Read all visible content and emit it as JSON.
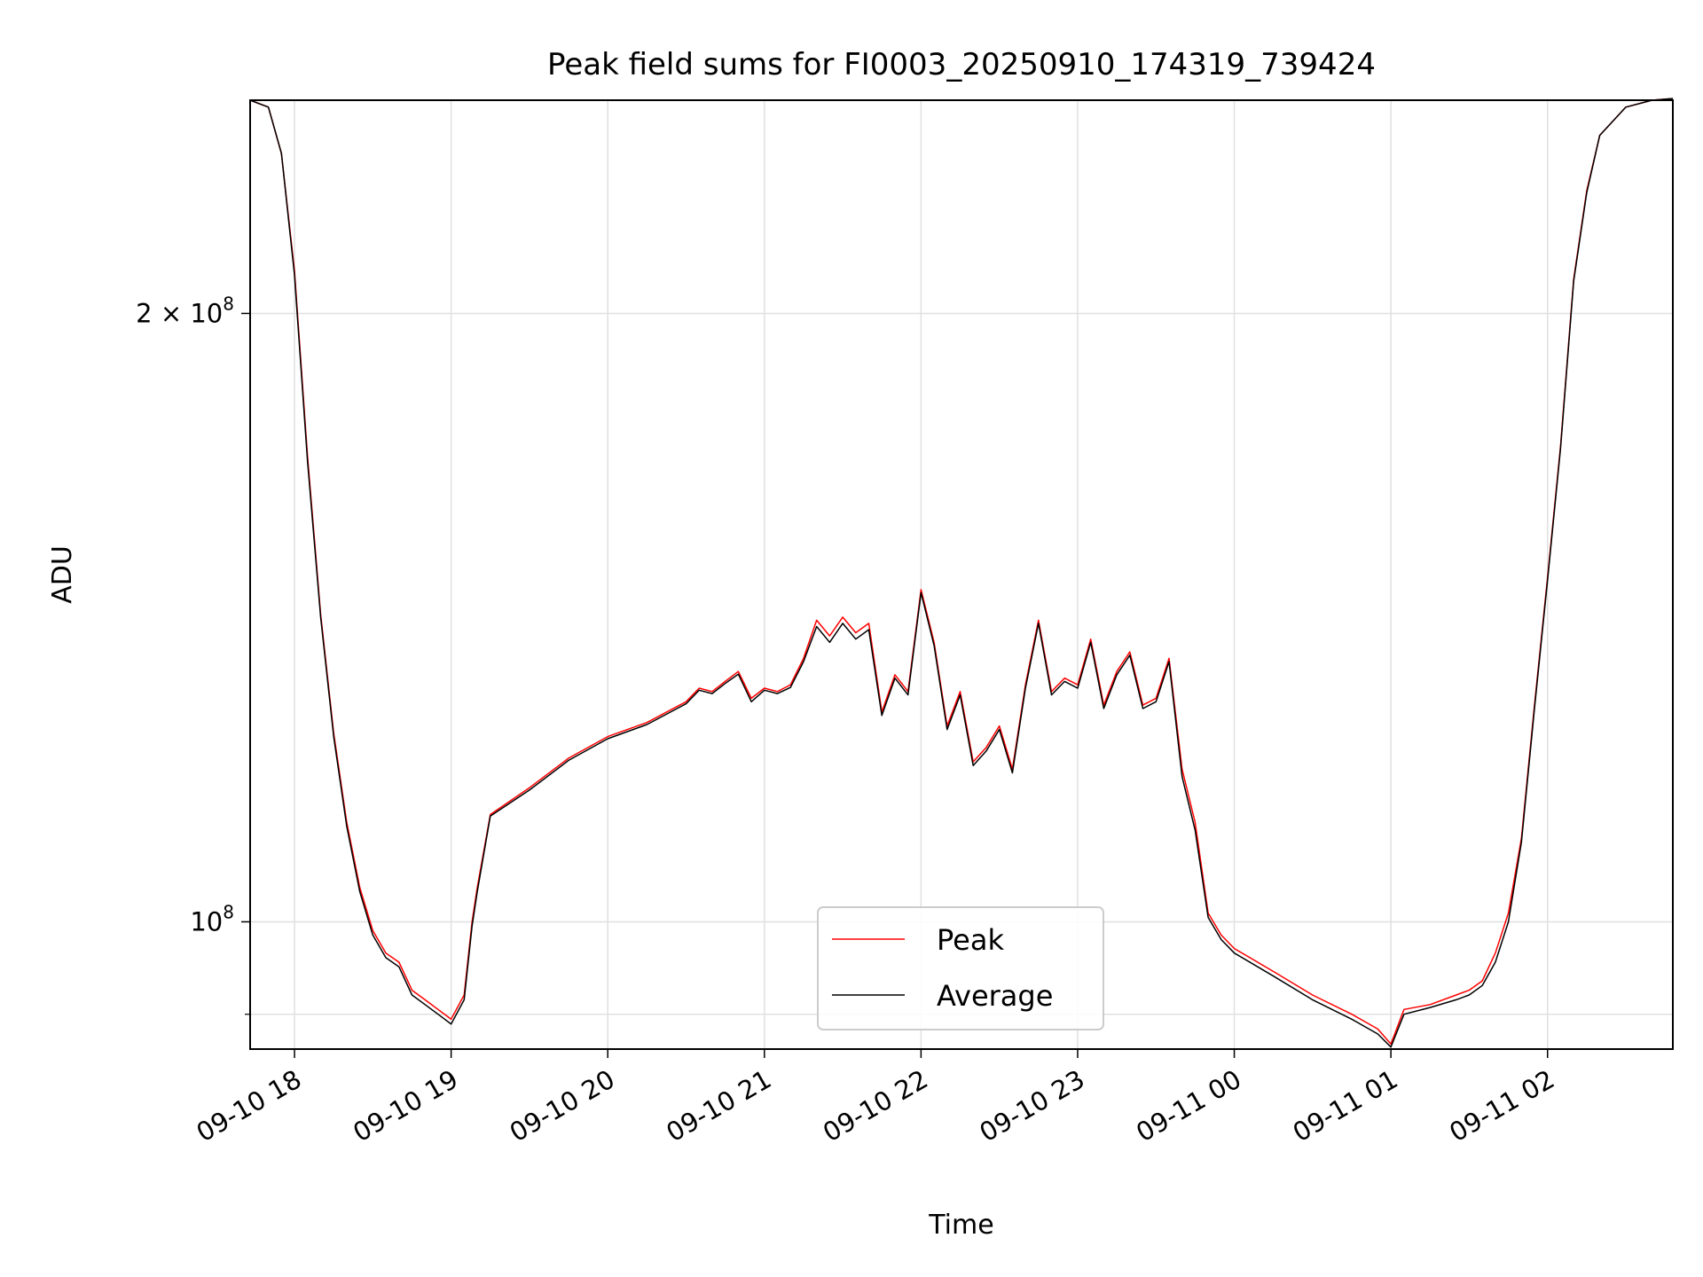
{
  "chart_data": {
    "type": "line",
    "title": "Peak field sums for FI0003_20250910_174319_739424",
    "xlabel": "Time",
    "ylabel": "ADU",
    "yscale": "log",
    "grid": true,
    "legend_position": "bottom-center",
    "x_range": [
      "2025-09-10 17:43",
      "2025-09-11 02:48"
    ],
    "ylim": [
      86500000,
      255000000
    ],
    "x_ticks": [
      "09-10 18",
      "09-10 19",
      "09-10 20",
      "09-10 21",
      "09-10 22",
      "09-10 23",
      "09-11 00",
      "09-11 01",
      "09-11 02"
    ],
    "y_ticks": [
      {
        "value": 200000000,
        "mantissa": "2",
        "exponent": "8"
      },
      {
        "value": 100000000,
        "mantissa": "",
        "exponent": "8"
      }
    ],
    "series": [
      {
        "name": "Peak",
        "color": "#ff0000",
        "x": [
          "2025-09-10 17:43",
          "2025-09-10 17:50",
          "2025-09-10 17:55",
          "2025-09-10 18:00",
          "2025-09-10 18:05",
          "2025-09-10 18:10",
          "2025-09-10 18:15",
          "2025-09-10 18:20",
          "2025-09-10 18:25",
          "2025-09-10 18:30",
          "2025-09-10 18:35",
          "2025-09-10 18:40",
          "2025-09-10 18:45",
          "2025-09-10 18:50",
          "2025-09-10 18:55",
          "2025-09-10 19:00",
          "2025-09-10 19:05",
          "2025-09-10 19:08",
          "2025-09-10 19:10",
          "2025-09-10 19:15",
          "2025-09-10 19:30",
          "2025-09-10 19:45",
          "2025-09-10 20:00",
          "2025-09-10 20:15",
          "2025-09-10 20:30",
          "2025-09-10 20:35",
          "2025-09-10 20:40",
          "2025-09-10 20:45",
          "2025-09-10 20:50",
          "2025-09-10 20:55",
          "2025-09-10 21:00",
          "2025-09-10 21:05",
          "2025-09-10 21:10",
          "2025-09-10 21:15",
          "2025-09-10 21:20",
          "2025-09-10 21:25",
          "2025-09-10 21:30",
          "2025-09-10 21:35",
          "2025-09-10 21:40",
          "2025-09-10 21:45",
          "2025-09-10 21:50",
          "2025-09-10 21:55",
          "2025-09-10 22:00",
          "2025-09-10 22:05",
          "2025-09-10 22:10",
          "2025-09-10 22:15",
          "2025-09-10 22:20",
          "2025-09-10 22:25",
          "2025-09-10 22:30",
          "2025-09-10 22:35",
          "2025-09-10 22:40",
          "2025-09-10 22:45",
          "2025-09-10 22:50",
          "2025-09-10 22:55",
          "2025-09-10 23:00",
          "2025-09-10 23:05",
          "2025-09-10 23:10",
          "2025-09-10 23:15",
          "2025-09-10 23:20",
          "2025-09-10 23:25",
          "2025-09-10 23:30",
          "2025-09-10 23:35",
          "2025-09-10 23:40",
          "2025-09-10 23:45",
          "2025-09-10 23:50",
          "2025-09-10 23:55",
          "2025-09-11 00:00",
          "2025-09-11 00:15",
          "2025-09-11 00:30",
          "2025-09-11 00:45",
          "2025-09-11 00:55",
          "2025-09-11 01:00",
          "2025-09-11 01:05",
          "2025-09-11 01:15",
          "2025-09-11 01:25",
          "2025-09-11 01:30",
          "2025-09-11 01:35",
          "2025-09-11 01:40",
          "2025-09-11 01:45",
          "2025-09-11 01:50",
          "2025-09-11 01:55",
          "2025-09-11 02:00",
          "2025-09-11 02:05",
          "2025-09-11 02:10",
          "2025-09-11 02:15",
          "2025-09-11 02:20",
          "2025-09-11 02:30",
          "2025-09-11 02:40",
          "2025-09-11 02:48"
        ],
        "values": [
          255000000,
          253000000,
          240000000,
          210000000,
          170000000,
          142000000,
          124000000,
          112000000,
          104000000,
          99000000,
          96500000,
          95500000,
          92500000,
          91500000,
          90500000,
          89500000,
          92000000,
          100000000,
          104000000,
          113000000,
          116500000,
          120500000,
          123500000,
          125500000,
          128500000,
          130500000,
          130000000,
          131500000,
          133000000,
          129000000,
          130500000,
          130000000,
          131000000,
          135000000,
          141000000,
          138500000,
          141500000,
          139000000,
          140500000,
          127000000,
          132500000,
          130000000,
          146000000,
          137500000,
          125000000,
          130000000,
          120000000,
          122000000,
          125000000,
          119000000,
          131000000,
          141000000,
          130000000,
          132000000,
          131000000,
          138000000,
          128000000,
          133000000,
          136000000,
          128000000,
          129000000,
          135000000,
          119000000,
          112000000,
          101000000,
          98500000,
          97000000,
          94500000,
          92000000,
          90000000,
          88500000,
          87000000,
          90500000,
          91000000,
          92000000,
          92500000,
          93500000,
          96500000,
          101000000,
          110000000,
          128000000,
          148000000,
          172000000,
          208000000,
          230000000,
          245000000,
          253000000,
          255000000,
          255500000
        ]
      },
      {
        "name": "Average",
        "color": "#000000",
        "x": [
          "2025-09-10 17:43",
          "2025-09-10 17:50",
          "2025-09-10 17:55",
          "2025-09-10 18:00",
          "2025-09-10 18:05",
          "2025-09-10 18:10",
          "2025-09-10 18:15",
          "2025-09-10 18:20",
          "2025-09-10 18:25",
          "2025-09-10 18:30",
          "2025-09-10 18:35",
          "2025-09-10 18:40",
          "2025-09-10 18:45",
          "2025-09-10 18:50",
          "2025-09-10 18:55",
          "2025-09-10 19:00",
          "2025-09-10 19:05",
          "2025-09-10 19:08",
          "2025-09-10 19:10",
          "2025-09-10 19:15",
          "2025-09-10 19:30",
          "2025-09-10 19:45",
          "2025-09-10 20:00",
          "2025-09-10 20:15",
          "2025-09-10 20:30",
          "2025-09-10 20:35",
          "2025-09-10 20:40",
          "2025-09-10 20:45",
          "2025-09-10 20:50",
          "2025-09-10 20:55",
          "2025-09-10 21:00",
          "2025-09-10 21:05",
          "2025-09-10 21:10",
          "2025-09-10 21:15",
          "2025-09-10 21:20",
          "2025-09-10 21:25",
          "2025-09-10 21:30",
          "2025-09-10 21:35",
          "2025-09-10 21:40",
          "2025-09-10 21:45",
          "2025-09-10 21:50",
          "2025-09-10 21:55",
          "2025-09-10 22:00",
          "2025-09-10 22:05",
          "2025-09-10 22:10",
          "2025-09-10 22:15",
          "2025-09-10 22:20",
          "2025-09-10 22:25",
          "2025-09-10 22:30",
          "2025-09-10 22:35",
          "2025-09-10 22:40",
          "2025-09-10 22:45",
          "2025-09-10 22:50",
          "2025-09-10 22:55",
          "2025-09-10 23:00",
          "2025-09-10 23:05",
          "2025-09-10 23:10",
          "2025-09-10 23:15",
          "2025-09-10 23:20",
          "2025-09-10 23:25",
          "2025-09-10 23:30",
          "2025-09-10 23:35",
          "2025-09-10 23:40",
          "2025-09-10 23:45",
          "2025-09-10 23:50",
          "2025-09-10 23:55",
          "2025-09-11 00:00",
          "2025-09-11 00:15",
          "2025-09-11 00:30",
          "2025-09-11 00:45",
          "2025-09-11 00:55",
          "2025-09-11 01:00",
          "2025-09-11 01:05",
          "2025-09-11 01:15",
          "2025-09-11 01:25",
          "2025-09-11 01:30",
          "2025-09-11 01:35",
          "2025-09-11 01:40",
          "2025-09-11 01:45",
          "2025-09-11 01:50",
          "2025-09-11 01:55",
          "2025-09-11 02:00",
          "2025-09-11 02:05",
          "2025-09-11 02:10",
          "2025-09-11 02:15",
          "2025-09-11 02:20",
          "2025-09-11 02:30",
          "2025-09-11 02:40",
          "2025-09-11 02:48"
        ],
        "values": [
          255000000,
          253000000,
          240000000,
          209000000,
          169000000,
          141500000,
          123500000,
          111500000,
          103500000,
          98500000,
          96000000,
          95000000,
          92000000,
          91000000,
          90000000,
          89000000,
          91500000,
          99500000,
          103500000,
          112800000,
          116200000,
          120200000,
          123200000,
          125200000,
          128200000,
          130200000,
          129700000,
          131200000,
          132600000,
          128500000,
          130200000,
          129700000,
          130600000,
          134500000,
          140000000,
          137500000,
          140500000,
          138000000,
          139500000,
          126500000,
          132000000,
          129500000,
          145500000,
          137000000,
          124500000,
          129500000,
          119500000,
          121500000,
          124500000,
          118500000,
          130500000,
          140500000,
          129500000,
          131500000,
          130500000,
          137500000,
          127500000,
          132500000,
          135500000,
          127500000,
          128500000,
          134500000,
          118000000,
          111000000,
          100500000,
          98000000,
          96500000,
          94000000,
          91500000,
          89500000,
          88000000,
          86700000,
          90000000,
          90700000,
          91500000,
          92000000,
          93000000,
          95500000,
          100000000,
          109500000,
          127500000,
          147500000,
          171500000,
          207500000,
          229500000,
          245000000,
          253000000,
          255000000,
          255500000
        ]
      }
    ]
  }
}
